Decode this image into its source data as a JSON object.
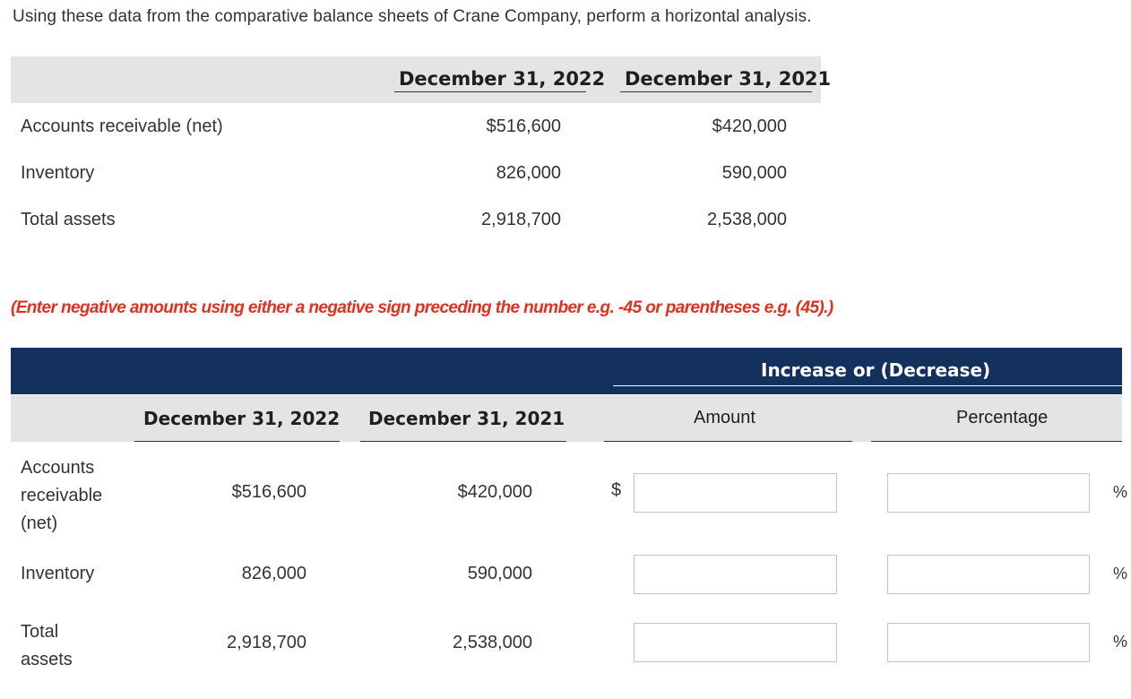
{
  "prompt": "Using these data from the comparative balance sheets of Crane Company, perform a horizontal analysis.",
  "given_table": {
    "col_2022": "December 31, 2022",
    "col_2021": "December 31, 2021",
    "rows": [
      {
        "label": "Accounts receivable (net)",
        "v2022": "$516,600",
        "v2021": "$420,000"
      },
      {
        "label": "Inventory",
        "v2022": "826,000",
        "v2021": "590,000"
      },
      {
        "label": "Total assets",
        "v2022": "2,918,700",
        "v2021": "2,538,000"
      }
    ]
  },
  "instruction": "(Enter negative amounts using either a negative sign preceding the number e.g. -45 or parentheses e.g. (45).)",
  "answer_table": {
    "group_header": "Increase or (Decrease)",
    "col_2022": "December 31, 2022",
    "col_2021": "December 31, 2021",
    "col_amount": "Amount",
    "col_percentage": "Percentage",
    "currency_symbol": "$",
    "percent_symbol": "%",
    "rows": [
      {
        "label_lines": [
          "Accounts",
          "receivable",
          "(net)"
        ],
        "v2022": "$516,600",
        "v2021": "$420,000",
        "amount": "",
        "percentage": ""
      },
      {
        "label_lines": [
          "Inventory"
        ],
        "v2022": "826,000",
        "v2021": "590,000",
        "amount": "",
        "percentage": ""
      },
      {
        "label_lines": [
          "Total",
          "assets"
        ],
        "v2022": "2,918,700",
        "v2021": "2,538,000",
        "amount": "",
        "percentage": ""
      }
    ]
  }
}
